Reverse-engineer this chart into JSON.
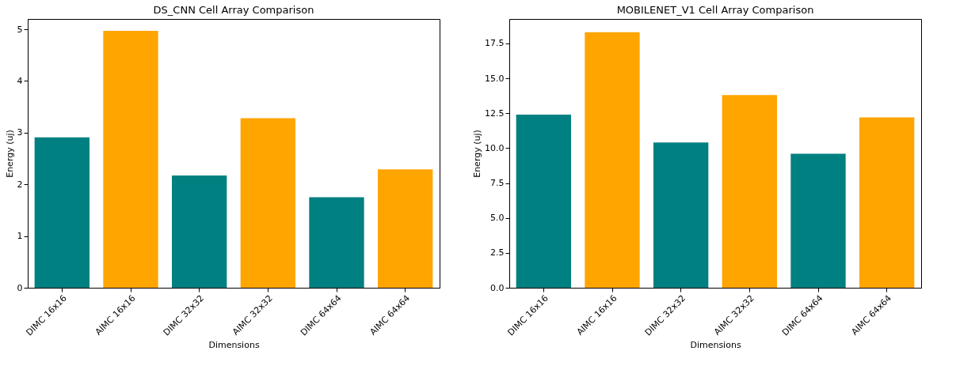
{
  "chart_data": [
    {
      "type": "bar",
      "title": "DS_CNN Cell Array Comparison",
      "xlabel": "Dimensions",
      "ylabel": "Energy (uj)",
      "categories": [
        "DIMC 16x16",
        "AIMC 16x16",
        "DIMC 32x32",
        "AIMC 32x32",
        "DIMC 64x64",
        "AIMC 64x64"
      ],
      "values": [
        2.91,
        4.97,
        2.17,
        3.28,
        1.75,
        2.29
      ],
      "colors": [
        "#008080",
        "#ffa500",
        "#008080",
        "#ffa500",
        "#008080",
        "#ffa500"
      ],
      "ylim": [
        0,
        5.2
      ],
      "yticks": [
        0,
        1,
        2,
        3,
        4,
        5
      ],
      "grid": false
    },
    {
      "type": "bar",
      "title": "MOBILENET_V1 Cell Array Comparison",
      "xlabel": "Dimensions",
      "ylabel": "Energy (uj)",
      "categories": [
        "DIMC 16x16",
        "AIMC 16x16",
        "DIMC 32x32",
        "AIMC 32x32",
        "DIMC 64x64",
        "AIMC 64x64"
      ],
      "values": [
        12.4,
        18.3,
        10.4,
        13.8,
        9.6,
        12.2
      ],
      "colors": [
        "#008080",
        "#ffa500",
        "#008080",
        "#ffa500",
        "#008080",
        "#ffa500"
      ],
      "ylim": [
        0,
        19.25
      ],
      "yticks": [
        {
          "value": 0,
          "label": "0.0"
        },
        {
          "value": 2.5,
          "label": "2.5"
        },
        {
          "value": 5,
          "label": "5.0"
        },
        {
          "value": 7.5,
          "label": "7.5"
        },
        {
          "value": 10,
          "label": "10.0"
        },
        {
          "value": 12.5,
          "label": "12.5"
        },
        {
          "value": 15,
          "label": "15.0"
        },
        {
          "value": 17.5,
          "label": "17.5"
        }
      ],
      "grid": false
    }
  ]
}
